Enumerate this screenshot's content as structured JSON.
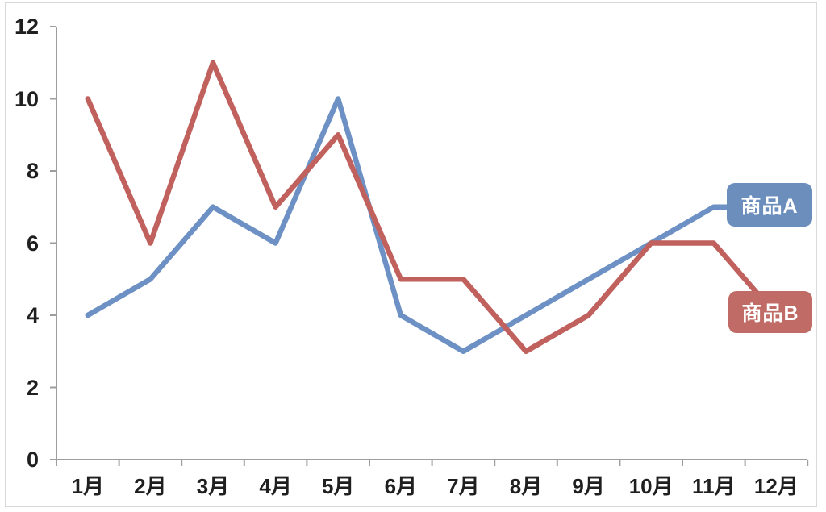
{
  "chart_data": {
    "type": "line",
    "title": "",
    "xlabel": "",
    "ylabel": "",
    "categories": [
      "1月",
      "2月",
      "3月",
      "4月",
      "5月",
      "6月",
      "7月",
      "8月",
      "9月",
      "10月",
      "11月",
      "12月"
    ],
    "series": [
      {
        "name": "商品A",
        "values": [
          4,
          5,
          7,
          6,
          10,
          4,
          3,
          4,
          5,
          6,
          7,
          7
        ],
        "line_color": "#6d91c4",
        "label_bg": "#6c8ebd"
      },
      {
        "name": "商品B",
        "values": [
          10,
          6,
          11,
          7,
          9,
          5,
          5,
          3,
          4,
          6,
          6,
          4
        ],
        "line_color": "#c0615d",
        "label_bg": "#c06b65"
      }
    ],
    "y_ticks": [
      0,
      2,
      4,
      6,
      8,
      10,
      12
    ],
    "ylim": [
      0,
      12
    ],
    "grid": false,
    "legend_position": "end-of-line-labels"
  },
  "axis": {
    "line_color": "#9e9e9e",
    "text_color": "#1f1f1f"
  },
  "frame": {
    "border_color": "#d9d9d9"
  }
}
